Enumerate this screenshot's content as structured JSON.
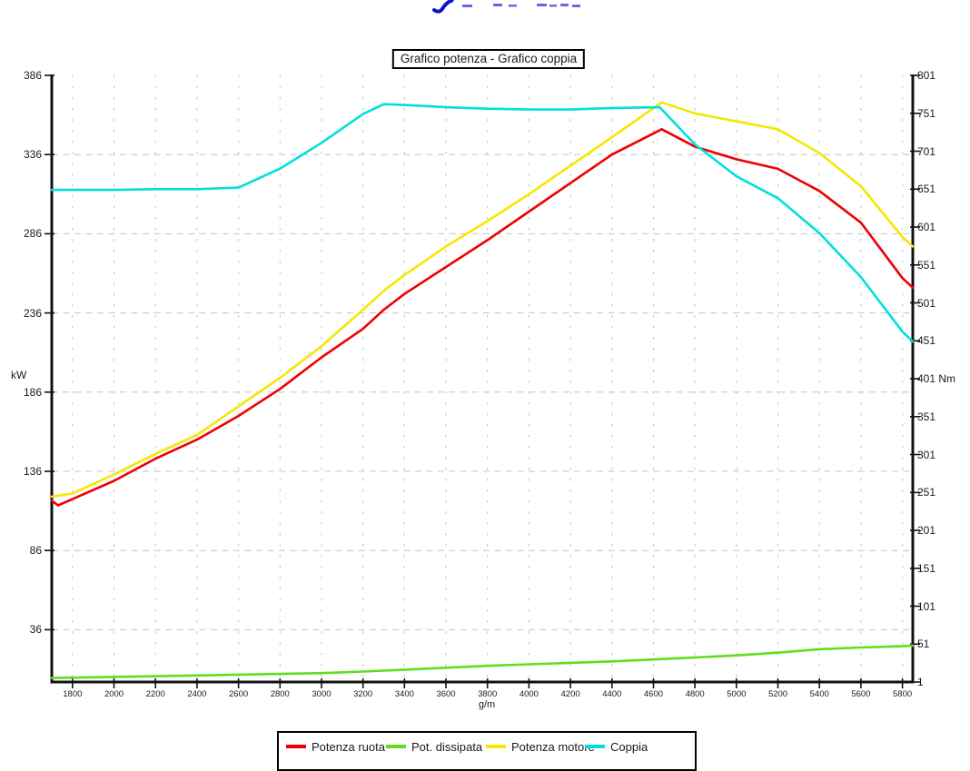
{
  "page": {
    "background": "#ffffff"
  },
  "top_mark": {
    "description": "partial blue handwritten mark clipped at top edge",
    "color_bold": "#0d13c9",
    "color_faint": "#6868e0"
  },
  "title": {
    "text": "Grafico potenza - Grafico coppia"
  },
  "legend": {
    "items": [
      {
        "label": "Potenza ruota",
        "color": "#ee0000"
      },
      {
        "label": "Pot. dissipata",
        "color": "#61dd1d"
      },
      {
        "label": "Potenza motore",
        "color": "#f5e800"
      },
      {
        "label": "Coppia",
        "color": "#00dfe0"
      }
    ]
  },
  "chart_data": {
    "type": "line",
    "title": "Grafico potenza - Grafico coppia",
    "xlabel": "g/m",
    "grid": true,
    "legend_position": "bottom",
    "x_axis": {
      "min": 1700,
      "max": 5850,
      "tick_step": 200,
      "ticks": [
        1800,
        2000,
        2200,
        2400,
        2600,
        2800,
        3000,
        3200,
        3400,
        3600,
        3800,
        4000,
        4200,
        4400,
        4600,
        4800,
        5000,
        5200,
        5400,
        5600,
        5800
      ]
    },
    "y_left": {
      "unit": "kW",
      "min": 3,
      "max": 386,
      "ticks": [
        36,
        86,
        136,
        186,
        236,
        286,
        336,
        386
      ]
    },
    "y_right": {
      "unit": "Nm",
      "min": 1,
      "max": 801,
      "unit_at_tick": 401,
      "ticks": [
        1,
        51,
        101,
        151,
        201,
        251,
        301,
        351,
        401,
        451,
        501,
        551,
        601,
        651,
        701,
        751,
        801
      ]
    },
    "series": [
      {
        "name": "Potenza ruota",
        "axis": "left",
        "color": "#ee0000",
        "points": [
          [
            1700,
            117.5
          ],
          [
            1730,
            114.5
          ],
          [
            1800,
            118.5
          ],
          [
            2000,
            130
          ],
          [
            2200,
            144
          ],
          [
            2400,
            156
          ],
          [
            2600,
            171
          ],
          [
            2800,
            188
          ],
          [
            3000,
            208
          ],
          [
            3200,
            226
          ],
          [
            3300,
            238
          ],
          [
            3400,
            248
          ],
          [
            3600,
            265
          ],
          [
            3800,
            282
          ],
          [
            4000,
            300
          ],
          [
            4200,
            318
          ],
          [
            4400,
            336
          ],
          [
            4640,
            352
          ],
          [
            4800,
            341
          ],
          [
            5000,
            333
          ],
          [
            5200,
            327
          ],
          [
            5400,
            313
          ],
          [
            5600,
            293
          ],
          [
            5800,
            258
          ],
          [
            5850,
            252
          ]
        ]
      },
      {
        "name": "Pot. dissipata",
        "axis": "left",
        "color": "#61dd1d",
        "points": [
          [
            1700,
            5.5
          ],
          [
            2000,
            6.2
          ],
          [
            2400,
            7.1
          ],
          [
            2800,
            8.1
          ],
          [
            3000,
            8.6
          ],
          [
            3200,
            9.6
          ],
          [
            3400,
            10.8
          ],
          [
            3600,
            12
          ],
          [
            3800,
            13.2
          ],
          [
            4000,
            14.2
          ],
          [
            4200,
            15.1
          ],
          [
            4400,
            16
          ],
          [
            4600,
            17.2
          ],
          [
            4800,
            18.5
          ],
          [
            5000,
            19.8
          ],
          [
            5200,
            21.5
          ],
          [
            5400,
            23.7
          ],
          [
            5600,
            24.8
          ],
          [
            5800,
            25.6
          ],
          [
            5850,
            26
          ]
        ]
      },
      {
        "name": "Potenza motore",
        "axis": "left",
        "color": "#f5e800",
        "points": [
          [
            1700,
            120
          ],
          [
            1800,
            122
          ],
          [
            2000,
            134
          ],
          [
            2200,
            147
          ],
          [
            2400,
            159
          ],
          [
            2600,
            177
          ],
          [
            2800,
            195
          ],
          [
            3000,
            215
          ],
          [
            3200,
            238
          ],
          [
            3300,
            250
          ],
          [
            3400,
            260
          ],
          [
            3600,
            278
          ],
          [
            3800,
            294
          ],
          [
            4000,
            311
          ],
          [
            4200,
            329
          ],
          [
            4400,
            347
          ],
          [
            4640,
            369
          ],
          [
            4800,
            362
          ],
          [
            5000,
            357
          ],
          [
            5200,
            352
          ],
          [
            5400,
            337
          ],
          [
            5600,
            316
          ],
          [
            5800,
            284
          ],
          [
            5850,
            278
          ]
        ]
      },
      {
        "name": "Coppia",
        "axis": "right",
        "color": "#00dfe0",
        "points": [
          [
            1700,
            650
          ],
          [
            2000,
            650
          ],
          [
            2200,
            651
          ],
          [
            2400,
            651
          ],
          [
            2600,
            653
          ],
          [
            2800,
            678
          ],
          [
            3000,
            712
          ],
          [
            3200,
            750
          ],
          [
            3300,
            763
          ],
          [
            3400,
            762
          ],
          [
            3600,
            759
          ],
          [
            3800,
            757
          ],
          [
            4000,
            756
          ],
          [
            4200,
            756
          ],
          [
            4400,
            758
          ],
          [
            4630,
            759
          ],
          [
            4800,
            710
          ],
          [
            5000,
            668
          ],
          [
            5200,
            639
          ],
          [
            5400,
            593
          ],
          [
            5600,
            535
          ],
          [
            5800,
            463
          ],
          [
            5850,
            450
          ]
        ]
      }
    ]
  }
}
